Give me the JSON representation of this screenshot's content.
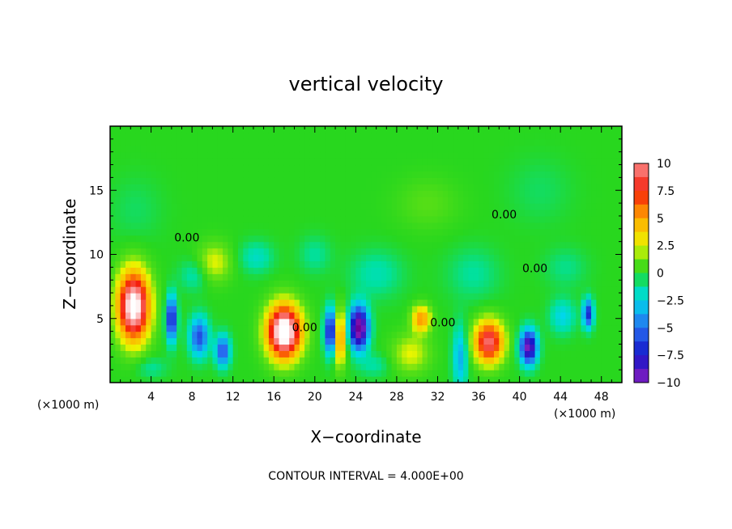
{
  "chart_data": {
    "type": "heatmap",
    "title": "vertical velocity",
    "xlabel": "X−coordinate",
    "ylabel": "Z−coordinate",
    "x_unit_left": "(×1000 m)",
    "x_unit_right": "(×1000 m)",
    "xlim": [
      0,
      50
    ],
    "ylim": [
      0,
      20
    ],
    "x_ticks": [
      4,
      8,
      12,
      16,
      20,
      24,
      28,
      32,
      36,
      40,
      44,
      48
    ],
    "x_tick_labels": [
      "4",
      "8",
      "12",
      "16",
      "20",
      "24",
      "28",
      "32",
      "36",
      "40",
      "44",
      "48"
    ],
    "y_ticks": [
      5,
      10,
      15
    ],
    "y_tick_labels": [
      "5",
      "10",
      "15"
    ],
    "colorbar": {
      "range": [
        -10,
        10
      ],
      "ticks": [
        10,
        7.5,
        5,
        2.5,
        0,
        -2.5,
        -5,
        -7.5,
        -10
      ],
      "tick_labels": [
        "10",
        "7.5",
        "5",
        "2.5",
        "0",
        "−2.5",
        "−5",
        "−7.5",
        "−10"
      ]
    },
    "contour_labels": [
      {
        "text": "0.00",
        "x": 7.5,
        "y": 11.0
      },
      {
        "text": "0.00",
        "x": 38.5,
        "y": 12.8
      },
      {
        "text": "0.00",
        "x": 41.5,
        "y": 8.6
      },
      {
        "text": "0.00",
        "x": 19.0,
        "y": 4.0
      },
      {
        "text": "0.00",
        "x": 32.5,
        "y": 4.4
      }
    ],
    "cells": [
      {
        "x": 2.3,
        "y": 6.0,
        "sx": 1.5,
        "sy": 2.6,
        "v": 13
      },
      {
        "x": 17.0,
        "y": 4.0,
        "sx": 1.6,
        "sy": 2.0,
        "v": 14
      },
      {
        "x": 37.0,
        "y": 3.2,
        "sx": 1.4,
        "sy": 1.6,
        "v": 9.5
      },
      {
        "x": 22.4,
        "y": 3.6,
        "sx": 0.6,
        "sy": 2.0,
        "v": 7
      },
      {
        "x": 24.3,
        "y": 4.3,
        "sx": 0.9,
        "sy": 1.6,
        "v": -12
      },
      {
        "x": 21.6,
        "y": 4.0,
        "sx": 0.6,
        "sy": 1.7,
        "v": -9
      },
      {
        "x": 6.0,
        "y": 5.0,
        "sx": 0.5,
        "sy": 1.7,
        "v": -8
      },
      {
        "x": 8.7,
        "y": 3.6,
        "sx": 0.9,
        "sy": 1.5,
        "v": -6
      },
      {
        "x": 11.0,
        "y": 2.5,
        "sx": 0.7,
        "sy": 1.2,
        "v": -6
      },
      {
        "x": 40.9,
        "y": 2.8,
        "sx": 0.8,
        "sy": 1.3,
        "v": -10
      },
      {
        "x": 46.7,
        "y": 5.4,
        "sx": 0.5,
        "sy": 1.1,
        "v": -7
      },
      {
        "x": 44.2,
        "y": 5.2,
        "sx": 1.2,
        "sy": 1.3,
        "v": -2.5
      },
      {
        "x": 30.4,
        "y": 5.0,
        "sx": 0.9,
        "sy": 1.0,
        "v": 5.5
      },
      {
        "x": 34.2,
        "y": 2.0,
        "sx": 0.7,
        "sy": 2.4,
        "v": -3.5
      },
      {
        "x": 29.4,
        "y": 2.3,
        "sx": 1.8,
        "sy": 1.5,
        "v": 2.5
      },
      {
        "x": 10.2,
        "y": 9.4,
        "sx": 1.6,
        "sy": 1.5,
        "v": 2.5
      },
      {
        "x": 8.2,
        "y": 8.4,
        "sx": 1.4,
        "sy": 1.2,
        "v": -1.5
      },
      {
        "x": 14.3,
        "y": 9.8,
        "sx": 1.6,
        "sy": 1.2,
        "v": -1.8
      },
      {
        "x": 20.0,
        "y": 10.0,
        "sx": 1.5,
        "sy": 1.4,
        "v": -1.2
      },
      {
        "x": 26.0,
        "y": 8.5,
        "sx": 2.5,
        "sy": 1.8,
        "v": -1.5
      },
      {
        "x": 35.5,
        "y": 8.5,
        "sx": 2.5,
        "sy": 2.0,
        "v": -1.2
      },
      {
        "x": 44.5,
        "y": 9.0,
        "sx": 2.0,
        "sy": 1.5,
        "v": -1.0
      },
      {
        "x": 4.0,
        "y": 1.2,
        "sx": 1.5,
        "sy": 0.8,
        "v": -1.2
      },
      {
        "x": 25.8,
        "y": 1.4,
        "sx": 1.5,
        "sy": 0.9,
        "v": -1.3
      },
      {
        "x": 2.5,
        "y": 13.5,
        "sx": 2.5,
        "sy": 2.5,
        "v": -0.6
      },
      {
        "x": 42.0,
        "y": 15.0,
        "sx": 3.0,
        "sy": 2.5,
        "v": -0.6
      },
      {
        "x": 31.0,
        "y": 14.0,
        "sx": 3.0,
        "sy": 2.0,
        "v": 0.9
      }
    ]
  }
}
